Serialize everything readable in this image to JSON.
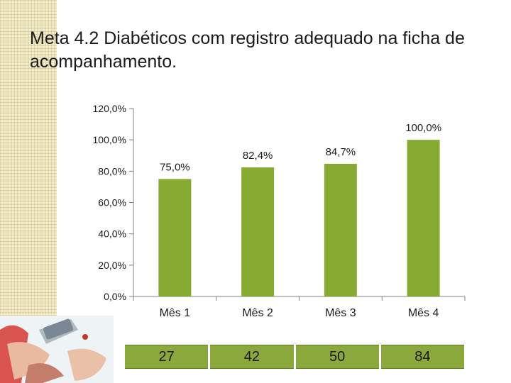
{
  "slide": {
    "title": "Meta 4.2 Diabéticos com registro adequado na ficha de acompanhamento."
  },
  "chart_data": {
    "type": "bar",
    "categories": [
      "Mês 1",
      "Mês 2",
      "Mês 3",
      "Mês 4"
    ],
    "values": [
      75.0,
      82.4,
      84.7,
      100.0
    ],
    "data_labels": [
      "75,0%",
      "82,4%",
      "84,7%",
      "100,0%"
    ],
    "y_ticks": [
      0,
      20,
      40,
      60,
      80,
      100,
      120
    ],
    "y_tick_labels": [
      "0,0%",
      "20,0%",
      "40,0%",
      "60,0%",
      "80,0%",
      "100,0%",
      "120,0%"
    ],
    "ylim": [
      0,
      120
    ],
    "title": "",
    "xlabel": "",
    "ylabel": "",
    "grid": false,
    "legend": "none",
    "bar_color": "#86aa32"
  },
  "count_table": {
    "values": [
      "27",
      "42",
      "50",
      "84"
    ],
    "cell_color": "#8ba83c"
  },
  "decor": {
    "photo_icon": "glucometer-photo-icon"
  }
}
